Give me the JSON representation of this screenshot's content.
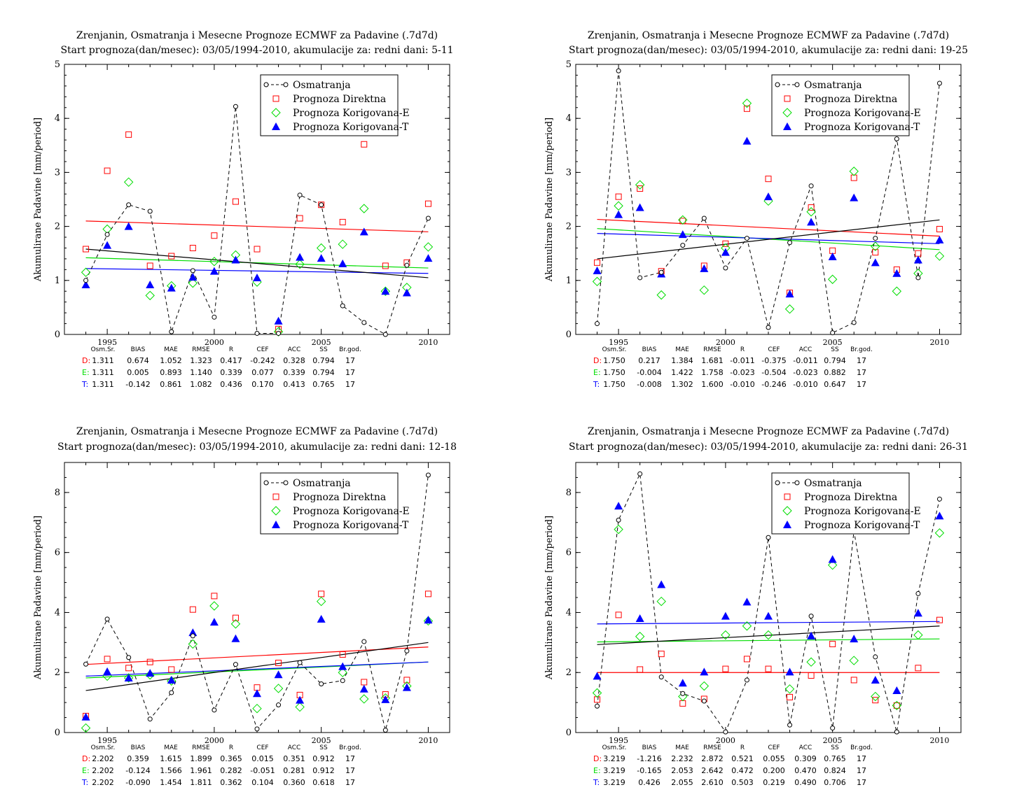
{
  "legend": {
    "observed": "Osmatranja",
    "direct": "Prognoza Direktna",
    "corrected_e": "Prognoza Korigovana-E",
    "corrected_t": "Prognoza Korigovana-T"
  },
  "colors": {
    "observed": "#000000",
    "direct": "#ff0000",
    "corrected_e": "#00dd00",
    "corrected_t": "#0000ff"
  },
  "stats_headers": [
    "Osm.Sr.",
    "BIAS",
    "MAE",
    "RMSE",
    "R",
    "CEF",
    "ACC",
    "SS",
    "Br.god."
  ],
  "chart_data": [
    {
      "type": "scatter",
      "title": "Zrenjanin, Osmatranja i Mesecne Prognoze ECMWF za Padavine (.7d7d)",
      "subtitle": "Start prognoza(dan/mesec): 03/05/1994-2010, akumulacije za: redni dani: 5-11",
      "ylabel": "Akumulirane Padavine [mm/period]",
      "xlim": [
        1993,
        2011
      ],
      "ylim": [
        0,
        5
      ],
      "xticks": [
        1995,
        2000,
        2005,
        2010
      ],
      "yticks": [
        0,
        1,
        2,
        3,
        4,
        5
      ],
      "x": [
        1994,
        1995,
        1996,
        1997,
        1998,
        1999,
        2000,
        2001,
        2002,
        2003,
        2004,
        2005,
        2006,
        2007,
        2008,
        2009,
        2010
      ],
      "series": [
        {
          "name": "Osmatranja",
          "values": [
            1.0,
            1.85,
            2.4,
            2.28,
            0.05,
            1.18,
            0.32,
            4.22,
            0.02,
            0.02,
            2.58,
            2.4,
            0.53,
            0.22,
            0.0,
            1.28,
            2.15
          ],
          "trend": [
            1.58,
            1.05
          ]
        },
        {
          "name": "Prognoza Direktna",
          "values": [
            1.58,
            3.03,
            3.7,
            1.27,
            1.45,
            1.6,
            1.83,
            2.46,
            1.58,
            0.1,
            2.15,
            2.4,
            2.08,
            3.52,
            1.27,
            1.33,
            2.42
          ],
          "trend": [
            2.1,
            1.9
          ]
        },
        {
          "name": "Prognoza Korigovana-E",
          "values": [
            1.15,
            1.95,
            2.82,
            0.72,
            0.9,
            0.95,
            1.35,
            1.47,
            0.97,
            0.05,
            1.3,
            1.6,
            1.67,
            2.33,
            0.8,
            0.87,
            1.62
          ],
          "trend": [
            1.42,
            1.23
          ]
        },
        {
          "name": "Prognoza Korigovana-T",
          "values": [
            0.92,
            1.65,
            2.0,
            0.92,
            0.86,
            1.06,
            1.17,
            1.38,
            1.05,
            0.25,
            1.43,
            1.41,
            1.31,
            1.9,
            0.8,
            0.77,
            1.41
          ],
          "trend": [
            1.22,
            1.13
          ]
        }
      ],
      "stats": [
        {
          "label": "D:",
          "values": [
            "1.311",
            "0.674",
            "1.052",
            "1.323",
            "0.417",
            "-0.242",
            "0.328",
            "0.794",
            "17"
          ]
        },
        {
          "label": "E:",
          "values": [
            "1.311",
            "0.005",
            "0.893",
            "1.140",
            "0.339",
            "0.077",
            "0.339",
            "0.794",
            "17"
          ]
        },
        {
          "label": "T:",
          "values": [
            "1.311",
            "-0.142",
            "0.861",
            "1.082",
            "0.436",
            "0.170",
            "0.413",
            "0.765",
            "17"
          ]
        }
      ]
    },
    {
      "type": "scatter",
      "title": "Zrenjanin, Osmatranja i Mesecne Prognoze ECMWF za Padavine (.7d7d)",
      "subtitle": "Start prognoza(dan/mesec): 03/05/1994-2010, akumulacije za: redni dani: 19-25",
      "ylabel": "Akumulirane Padavine [mm/period]",
      "xlim": [
        1993,
        2011
      ],
      "ylim": [
        0,
        5
      ],
      "xticks": [
        1995,
        2000,
        2005,
        2010
      ],
      "yticks": [
        0,
        1,
        2,
        3,
        4,
        5
      ],
      "x": [
        1994,
        1995,
        1996,
        1997,
        1998,
        1999,
        2000,
        2001,
        2002,
        2003,
        2004,
        2005,
        2006,
        2007,
        2008,
        2009,
        2010
      ],
      "series": [
        {
          "name": "Osmatranja",
          "values": [
            0.2,
            4.88,
            1.05,
            1.15,
            1.65,
            2.15,
            1.23,
            1.78,
            0.13,
            1.7,
            2.75,
            0.03,
            0.22,
            1.78,
            3.62,
            1.05,
            4.65
          ],
          "trend": [
            1.4,
            2.12
          ]
        },
        {
          "name": "Prognoza Direktna",
          "values": [
            1.33,
            2.55,
            2.7,
            1.17,
            2.1,
            1.27,
            1.68,
            4.18,
            2.88,
            0.77,
            2.35,
            1.55,
            2.9,
            1.52,
            1.2,
            1.5,
            1.95
          ],
          "trend": [
            2.13,
            1.82
          ]
        },
        {
          "name": "Prognoza Korigovana-E",
          "values": [
            0.98,
            2.38,
            2.77,
            0.73,
            2.12,
            0.82,
            1.6,
            4.28,
            2.47,
            0.47,
            2.27,
            1.02,
            3.02,
            1.63,
            0.8,
            1.13,
            1.45
          ],
          "trend": [
            1.96,
            1.57
          ]
        },
        {
          "name": "Prognoza Korigovana-T",
          "values": [
            1.18,
            2.22,
            2.35,
            1.12,
            1.85,
            1.22,
            1.52,
            3.58,
            2.55,
            0.75,
            2.08,
            1.44,
            2.53,
            1.33,
            1.13,
            1.38,
            1.75
          ],
          "trend": [
            1.87,
            1.68
          ]
        }
      ],
      "stats": [
        {
          "label": "D:",
          "values": [
            "1.750",
            "0.217",
            "1.384",
            "1.681",
            "-0.011",
            "-0.375",
            "-0.011",
            "0.794",
            "17"
          ]
        },
        {
          "label": "E:",
          "values": [
            "1.750",
            "-0.004",
            "1.422",
            "1.758",
            "-0.023",
            "-0.504",
            "-0.023",
            "0.882",
            "17"
          ]
        },
        {
          "label": "T:",
          "values": [
            "1.750",
            "-0.008",
            "1.302",
            "1.600",
            "-0.010",
            "-0.246",
            "-0.010",
            "0.647",
            "17"
          ]
        }
      ]
    },
    {
      "type": "scatter",
      "title": "Zrenjanin, Osmatranja i Mesecne Prognoze ECMWF za Padavine (.7d7d)",
      "subtitle": "Start prognoza(dan/mesec): 03/05/1994-2010, akumulacije za: redni dani: 12-18",
      "ylabel": "Akumulirane Padavine [mm/period]",
      "xlim": [
        1993,
        2011
      ],
      "ylim": [
        0,
        9
      ],
      "xticks": [
        1995,
        2000,
        2005,
        2010
      ],
      "yticks": [
        0,
        2,
        4,
        6,
        8
      ],
      "x": [
        1994,
        1995,
        1996,
        1997,
        1998,
        1999,
        2000,
        2001,
        2002,
        2003,
        2004,
        2005,
        2006,
        2007,
        2008,
        2009,
        2010
      ],
      "series": [
        {
          "name": "Osmatranja",
          "values": [
            2.28,
            3.78,
            2.5,
            0.45,
            1.33,
            3.22,
            0.75,
            2.27,
            0.12,
            0.92,
            2.33,
            1.62,
            1.73,
            3.03,
            0.08,
            2.72,
            8.58
          ],
          "trend": [
            1.4,
            3.0
          ]
        },
        {
          "name": "Prognoza Direktna",
          "values": [
            0.55,
            2.45,
            2.15,
            2.35,
            2.1,
            4.1,
            4.55,
            3.82,
            1.5,
            2.32,
            1.25,
            4.62,
            2.6,
            1.68,
            1.27,
            1.75,
            4.62
          ],
          "trend": [
            2.27,
            2.85
          ]
        },
        {
          "name": "Prognoza Korigovana-E",
          "values": [
            0.15,
            1.88,
            1.82,
            1.92,
            1.72,
            2.95,
            4.22,
            3.62,
            0.8,
            1.47,
            0.85,
            4.37,
            2.0,
            1.12,
            1.15,
            1.55,
            3.72
          ],
          "trend": [
            1.82,
            2.35
          ]
        },
        {
          "name": "Prognoza Korigovana-T",
          "values": [
            0.52,
            2.03,
            1.82,
            1.98,
            1.75,
            3.33,
            3.68,
            3.13,
            1.3,
            1.93,
            1.08,
            3.78,
            2.2,
            1.45,
            1.1,
            1.5,
            3.75
          ],
          "trend": [
            1.88,
            2.35
          ]
        }
      ],
      "stats": [
        {
          "label": "D:",
          "values": [
            "2.202",
            "0.359",
            "1.615",
            "1.899",
            "0.365",
            "0.015",
            "0.351",
            "0.912",
            "17"
          ]
        },
        {
          "label": "E:",
          "values": [
            "2.202",
            "-0.124",
            "1.566",
            "1.961",
            "0.282",
            "-0.051",
            "0.281",
            "0.912",
            "17"
          ]
        },
        {
          "label": "T:",
          "values": [
            "2.202",
            "-0.090",
            "1.454",
            "1.811",
            "0.362",
            "0.104",
            "0.360",
            "0.618",
            "17"
          ]
        }
      ]
    },
    {
      "type": "scatter",
      "title": "Zrenjanin, Osmatranja i Mesecne Prognoze ECMWF za Padavine (.7d7d)",
      "subtitle": "Start prognoza(dan/mesec): 03/05/1994-2010, akumulacije za: redni dani: 26-31",
      "ylabel": "Akumulirane Padavine [mm/period]",
      "xlim": [
        1993,
        2011
      ],
      "ylim": [
        0,
        9
      ],
      "xticks": [
        1995,
        2000,
        2005,
        2010
      ],
      "yticks": [
        0,
        2,
        4,
        6,
        8
      ],
      "x": [
        1994,
        1995,
        1996,
        1997,
        1998,
        1999,
        2000,
        2001,
        2002,
        2003,
        2004,
        2005,
        2006,
        2007,
        2008,
        2009,
        2010
      ],
      "series": [
        {
          "name": "Osmatranja",
          "values": [
            0.88,
            7.08,
            8.62,
            1.85,
            1.3,
            1.05,
            0.02,
            1.75,
            6.5,
            0.25,
            3.88,
            0.15,
            6.72,
            2.52,
            0.02,
            4.63,
            7.78
          ],
          "trend": [
            2.93,
            3.55
          ]
        },
        {
          "name": "Prognoza Direktna",
          "values": [
            1.1,
            3.92,
            2.1,
            2.62,
            0.97,
            1.12,
            2.12,
            2.45,
            2.12,
            1.18,
            1.9,
            2.95,
            1.75,
            1.08,
            0.9,
            2.15,
            3.75
          ],
          "trend": [
            2.0,
            2.0
          ]
        },
        {
          "name": "Prognoza Korigovana-E",
          "values": [
            1.32,
            6.77,
            3.2,
            4.37,
            1.2,
            1.55,
            3.25,
            3.55,
            3.25,
            1.45,
            2.35,
            5.58,
            2.4,
            1.2,
            0.9,
            3.25,
            6.65
          ],
          "trend": [
            3.02,
            3.12
          ]
        },
        {
          "name": "Prognoza Korigovana-T",
          "values": [
            1.88,
            7.55,
            3.8,
            4.93,
            1.65,
            2.02,
            3.88,
            4.35,
            3.88,
            2.02,
            3.22,
            5.77,
            3.12,
            1.75,
            1.4,
            3.98,
            7.22
          ],
          "trend": [
            3.62,
            3.7
          ]
        }
      ],
      "stats": [
        {
          "label": "D:",
          "values": [
            "3.219",
            "-1.216",
            "2.232",
            "2.872",
            "0.521",
            "0.055",
            "0.309",
            "0.765",
            "17"
          ]
        },
        {
          "label": "E:",
          "values": [
            "3.219",
            "-0.165",
            "2.053",
            "2.642",
            "0.472",
            "0.200",
            "0.470",
            "0.824",
            "17"
          ]
        },
        {
          "label": "T:",
          "values": [
            "3.219",
            "0.426",
            "2.055",
            "2.610",
            "0.503",
            "0.219",
            "0.490",
            "0.706",
            "17"
          ]
        }
      ]
    }
  ]
}
